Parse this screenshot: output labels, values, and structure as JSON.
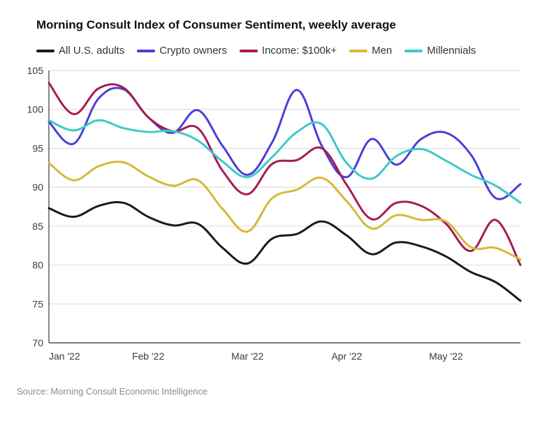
{
  "chart": {
    "type": "line",
    "title": "Morning Consult Index of Consumer Sentiment, weekly average",
    "source": "Source: Morning Consult Economic Intelligence",
    "background_color": "#ffffff",
    "title_fontsize": 17,
    "title_color": "#111111",
    "source_fontsize": 13,
    "source_color": "#8a8a8a",
    "axis_label_fontsize": 14,
    "axis_label_color": "#3a3a3a",
    "gridline_color": "#d9d9d9",
    "axis_line_color": "#555555",
    "line_width": 3,
    "ylim": [
      70,
      105
    ],
    "ytick_step": 5,
    "yticks": [
      70,
      75,
      80,
      85,
      90,
      95,
      100,
      105
    ],
    "x_categories": [
      "Jan '22",
      "Feb '22",
      "Mar '22",
      "Apr '22",
      "May '22"
    ],
    "x_points_per_category": 4,
    "x_total_points": 20,
    "series": [
      {
        "id": "all_us_adults",
        "label": "All U.S. adults",
        "color": "#1a1a1a",
        "values": [
          87.3,
          86.2,
          87.6,
          88.0,
          86.2,
          85.1,
          85.3,
          82.2,
          80.2,
          83.4,
          84.0,
          85.6,
          83.8,
          81.4,
          82.9,
          82.4,
          81.1,
          79.1,
          77.8,
          75.4
        ]
      },
      {
        "id": "crypto_owners",
        "label": "Crypto owners",
        "color": "#4a3fd6",
        "values": [
          98.4,
          95.6,
          101.4,
          102.6,
          99.0,
          97.0,
          99.9,
          95.3,
          91.6,
          95.8,
          102.5,
          95.3,
          91.3,
          96.2,
          92.9,
          96.2,
          97.0,
          94.2,
          88.6,
          90.4
        ]
      },
      {
        "id": "income_100k",
        "label": "Income: $100k+",
        "color": "#a61b55",
        "values": [
          103.4,
          99.4,
          102.7,
          102.8,
          99.0,
          97.2,
          97.6,
          92.1,
          89.1,
          93.0,
          93.5,
          95.0,
          90.3,
          85.9,
          88.0,
          87.6,
          85.3,
          81.8,
          85.8,
          80.0
        ]
      },
      {
        "id": "men",
        "label": "Men",
        "color": "#d6b83a",
        "values": [
          93.1,
          90.9,
          92.7,
          93.2,
          91.4,
          90.2,
          90.9,
          87.2,
          84.3,
          88.6,
          89.7,
          91.2,
          88.2,
          84.7,
          86.4,
          85.8,
          85.6,
          82.3,
          82.2,
          80.7
        ]
      },
      {
        "id": "millennials",
        "label": "Millennials",
        "color": "#3ec9c6",
        "values": [
          98.6,
          97.3,
          98.6,
          97.6,
          97.1,
          97.2,
          96.0,
          93.3,
          91.3,
          93.9,
          97.1,
          98.1,
          93.1,
          91.1,
          94.0,
          94.9,
          93.4,
          91.6,
          90.2,
          88.0
        ]
      }
    ]
  }
}
